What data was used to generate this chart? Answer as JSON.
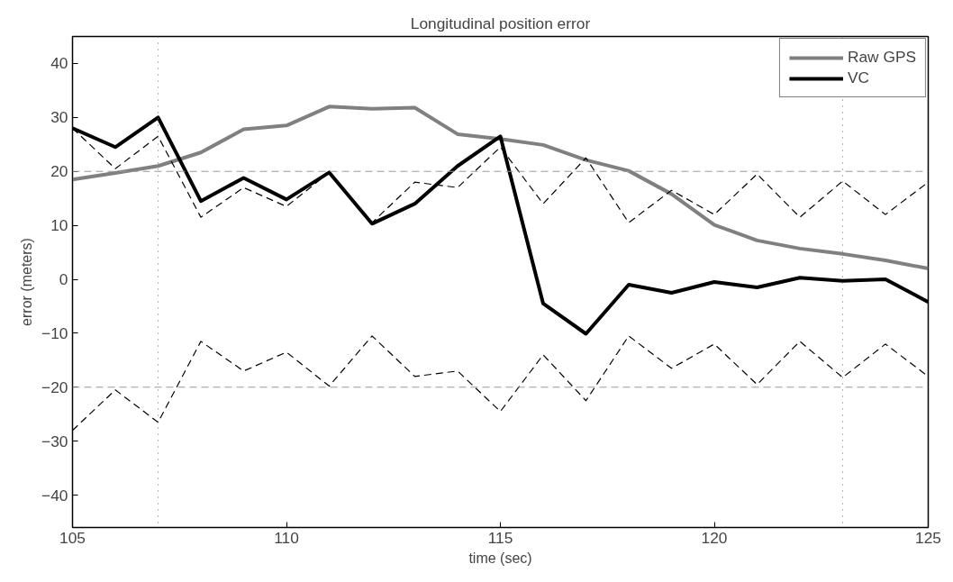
{
  "chart_data": {
    "type": "line",
    "title": "Longitudinal position error",
    "xlabel": "time (sec)",
    "ylabel": "error (meters)",
    "x": [
      105,
      106,
      107,
      108,
      109,
      110,
      111,
      112,
      113,
      114,
      115,
      116,
      117,
      118,
      119,
      120,
      121,
      122,
      123,
      124,
      125
    ],
    "series": [
      {
        "name": "Raw GPS",
        "color": "#808080",
        "line_style": "solid",
        "values": [
          18.5,
          19.7,
          21,
          23.5,
          27.8,
          28.5,
          32,
          31.6,
          31.8,
          26.9,
          26,
          24.9,
          22.1,
          20.1,
          15.8,
          10.1,
          7.2,
          5.7,
          4.7,
          3.5,
          2
        ]
      },
      {
        "name": "VC",
        "color": "#000000",
        "line_style": "solid",
        "values": [
          28,
          24.5,
          30,
          14.5,
          18.8,
          14.8,
          19.8,
          10.3,
          14,
          21,
          26.5,
          -4.5,
          -10.1,
          -1,
          -2.5,
          -0.5,
          -1.5,
          0.3,
          -0.3,
          0,
          -4.2
        ]
      },
      {
        "color": "#000000",
        "line_style": "dashed",
        "values": [
          28,
          20.5,
          26.5,
          11.5,
          17,
          13.5,
          19.8,
          10.5,
          18,
          17,
          24.5,
          14,
          22.5,
          10.5,
          16.5,
          12,
          19.5,
          11.5,
          18.2,
          12,
          18
        ]
      },
      {
        "color": "#000000",
        "line_style": "dashed",
        "values": [
          -28,
          -20.5,
          -26.5,
          -11.5,
          -17,
          -13.5,
          -19.8,
          -10.5,
          -18,
          -17,
          -24.5,
          -14,
          -22.5,
          -10.5,
          -16.5,
          -12,
          -19.5,
          -11.5,
          -18.2,
          -12,
          -18
        ]
      }
    ],
    "xlim": [
      105,
      125
    ],
    "xticks": [
      105,
      110,
      115,
      120,
      125
    ],
    "ylim": [
      -46,
      45
    ],
    "yticks": [
      -40,
      -30,
      -20,
      -10,
      0,
      10,
      20,
      30,
      40
    ],
    "ref_lines": [
      {
        "axis": "y",
        "value": 20,
        "color": "#999999",
        "line_style": "dashed"
      },
      {
        "axis": "y",
        "value": -20,
        "color": "#999999",
        "line_style": "dashed"
      },
      {
        "axis": "x",
        "value": 107,
        "color": "#666666",
        "line_style": "dotted"
      },
      {
        "axis": "x",
        "value": 123,
        "color": "#666666",
        "line_style": "dotted"
      }
    ],
    "grid": false,
    "legend": "top right",
    "marker": "none"
  }
}
